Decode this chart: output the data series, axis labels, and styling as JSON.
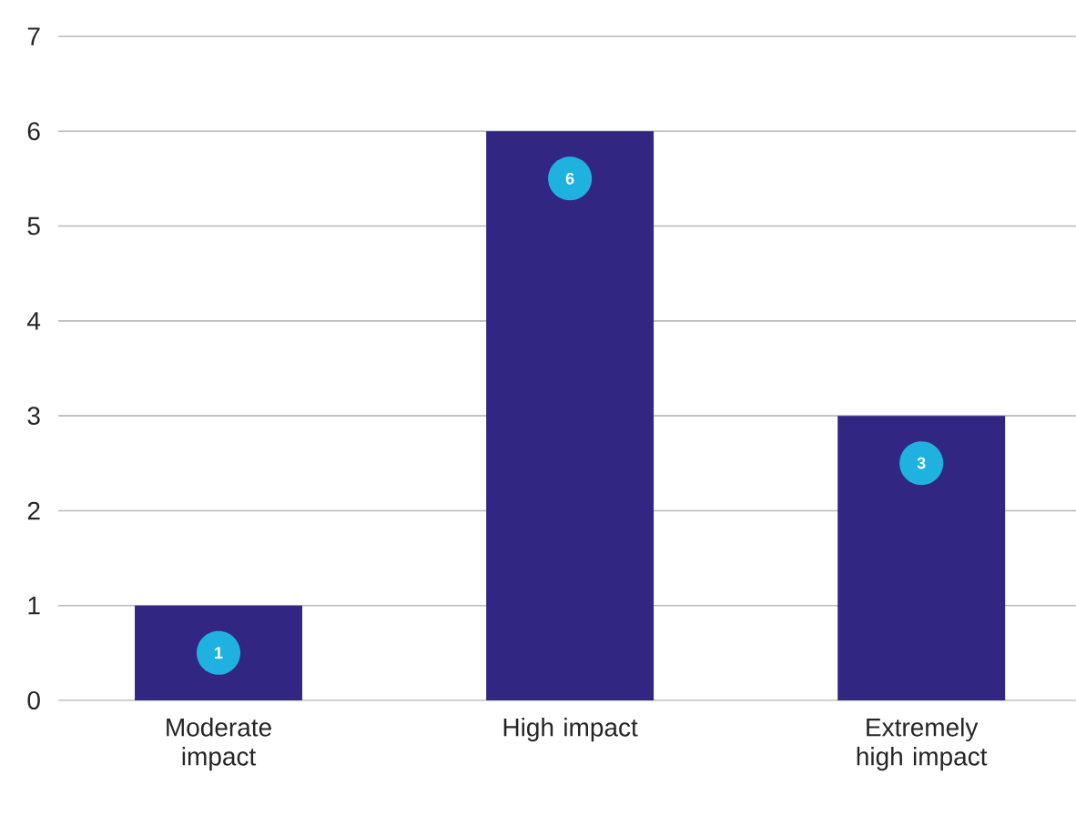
{
  "chart_data": {
    "type": "bar",
    "categories": [
      "Moderate impact",
      "High impact",
      "Extremely high impact"
    ],
    "values": [
      1,
      6,
      3
    ],
    "color": "#312783",
    "ylim": [
      0,
      7
    ],
    "yticks": [
      0,
      1,
      2,
      3,
      4,
      5,
      6,
      7
    ],
    "grid": "y",
    "data_labels": true
  }
}
